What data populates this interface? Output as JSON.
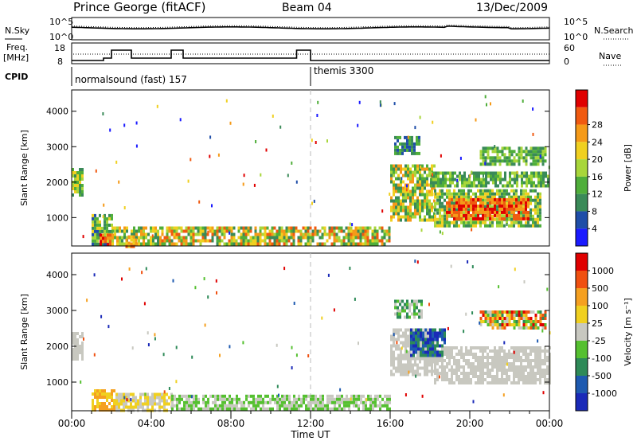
{
  "header": {
    "title": "Prince George (fitACF)",
    "beam": "Beam 04",
    "date": "13/Dec/2009"
  },
  "summary_panel": {
    "nsky_label": "N.Sky",
    "nsearch_label": "N.Search",
    "freq_label_1": "Freq.",
    "freq_label_2": "[MHz]",
    "nave_label": "Nave",
    "cpid_label": "CPID",
    "noise_ticks": [
      "10^5",
      "10^0"
    ],
    "freq_ticks": [
      "18",
      "8"
    ],
    "nave_ticks": [
      "60",
      "0"
    ],
    "cpid_segments": [
      {
        "label": "normalsound (fast) 157",
        "start_hour": 0,
        "end_hour": 12
      },
      {
        "label": "themis 3300",
        "start_hour": 12,
        "end_hour": 24
      }
    ]
  },
  "chart_data": [
    {
      "type": "heatmap",
      "name": "power",
      "ylabel": "Slant Range [km]",
      "yticks": [
        "1000",
        "2000",
        "3000",
        "4000"
      ],
      "ylim": [
        200,
        4600
      ],
      "xlim_hours": [
        0,
        24
      ],
      "colorbar_label": "Power [dB]",
      "colorbar_ticks": [
        "4",
        "8",
        "12",
        "16",
        "20",
        "24",
        "28"
      ],
      "colors": [
        "#1a1aff",
        "#1f4ea8",
        "#3a8a58",
        "#4fae3a",
        "#a8d63a",
        "#f0d020",
        "#f59a18",
        "#f05a10",
        "#e00000"
      ],
      "regions": [
        {
          "t0": 0.0,
          "t1": 0.5,
          "r0": 1600,
          "r1": 2400,
          "level": [
            2,
            5
          ]
        },
        {
          "t0": 1.0,
          "t1": 2.0,
          "r0": 220,
          "r1": 1100,
          "level": [
            1,
            5
          ]
        },
        {
          "t0": 1.4,
          "t1": 2.1,
          "r0": 220,
          "r1": 550,
          "level": [
            6,
            8
          ]
        },
        {
          "t0": 2.0,
          "t1": 4.5,
          "r0": 220,
          "r1": 750,
          "level": [
            2,
            6
          ]
        },
        {
          "t0": 2.7,
          "t1": 3.3,
          "r0": 220,
          "r1": 500,
          "level": [
            5,
            7
          ]
        },
        {
          "t0": 4.5,
          "t1": 16.0,
          "r0": 220,
          "r1": 750,
          "level": [
            2,
            7
          ]
        },
        {
          "t0": 16.0,
          "t1": 18.2,
          "r0": 900,
          "r1": 2500,
          "level": [
            2,
            6
          ]
        },
        {
          "t0": 18.2,
          "t1": 23.6,
          "r0": 800,
          "r1": 1800,
          "level": [
            2,
            5
          ]
        },
        {
          "t0": 18.8,
          "t1": 23.0,
          "r0": 1000,
          "r1": 1550,
          "level": [
            6,
            8
          ]
        },
        {
          "t0": 18.0,
          "t1": 24.0,
          "r0": 1900,
          "r1": 2300,
          "level": [
            2,
            4
          ]
        },
        {
          "t0": 16.2,
          "t1": 17.5,
          "r0": 2800,
          "r1": 3300,
          "level": [
            1,
            3
          ]
        },
        {
          "t0": 20.5,
          "t1": 23.8,
          "r0": 2500,
          "r1": 3000,
          "level": [
            2,
            4
          ]
        }
      ]
    },
    {
      "type": "heatmap",
      "name": "velocity",
      "ylabel": "Slant Range [km]",
      "yticks": [
        "1000",
        "2000",
        "3000",
        "4000"
      ],
      "ylim": [
        200,
        4600
      ],
      "xlim_hours": [
        0,
        24
      ],
      "colorbar_label": "Velocity [m s⁻¹]",
      "colorbar_ticks": [
        "1000",
        "500",
        "100",
        "25",
        "-25",
        "-100",
        "-500",
        "-1000"
      ],
      "colors": [
        "#1a2ab8",
        "#1e5ab0",
        "#2e8a58",
        "#55c030",
        "#c8c8c0",
        "#f0d020",
        "#f5a020",
        "#f05010",
        "#e00000"
      ],
      "regions": [
        {
          "t0": 0.0,
          "t1": 0.5,
          "r0": 1600,
          "r1": 2400,
          "level": [
            4,
            4
          ]
        },
        {
          "t0": 1.0,
          "t1": 2.2,
          "r0": 220,
          "r1": 800,
          "level": [
            5,
            6
          ]
        },
        {
          "t0": 2.2,
          "t1": 5.0,
          "r0": 220,
          "r1": 700,
          "level": [
            4,
            5
          ]
        },
        {
          "t0": 5.0,
          "t1": 16.0,
          "r0": 220,
          "r1": 650,
          "level": [
            3,
            4
          ]
        },
        {
          "t0": 16.0,
          "t1": 18.2,
          "r0": 1200,
          "r1": 2500,
          "level": [
            4,
            4
          ]
        },
        {
          "t0": 18.2,
          "t1": 24.0,
          "r0": 1000,
          "r1": 2000,
          "level": [
            4,
            4
          ]
        },
        {
          "t0": 17.0,
          "t1": 18.8,
          "r0": 1700,
          "r1": 2500,
          "level": [
            0,
            2
          ]
        },
        {
          "t0": 16.2,
          "t1": 17.6,
          "r0": 2800,
          "r1": 3300,
          "level": [
            2,
            4
          ]
        },
        {
          "t0": 20.5,
          "t1": 23.8,
          "r0": 2500,
          "r1": 3000,
          "level": [
            2,
            8
          ]
        }
      ]
    }
  ],
  "time_axis": {
    "ticks": [
      "00:00",
      "04:00",
      "08:00",
      "12:00",
      "16:00",
      "20:00",
      "00:00"
    ],
    "label": "Time UT"
  },
  "colors": {
    "missing_scatter": "#ffffff",
    "noon_line": "#bbbbbb"
  }
}
